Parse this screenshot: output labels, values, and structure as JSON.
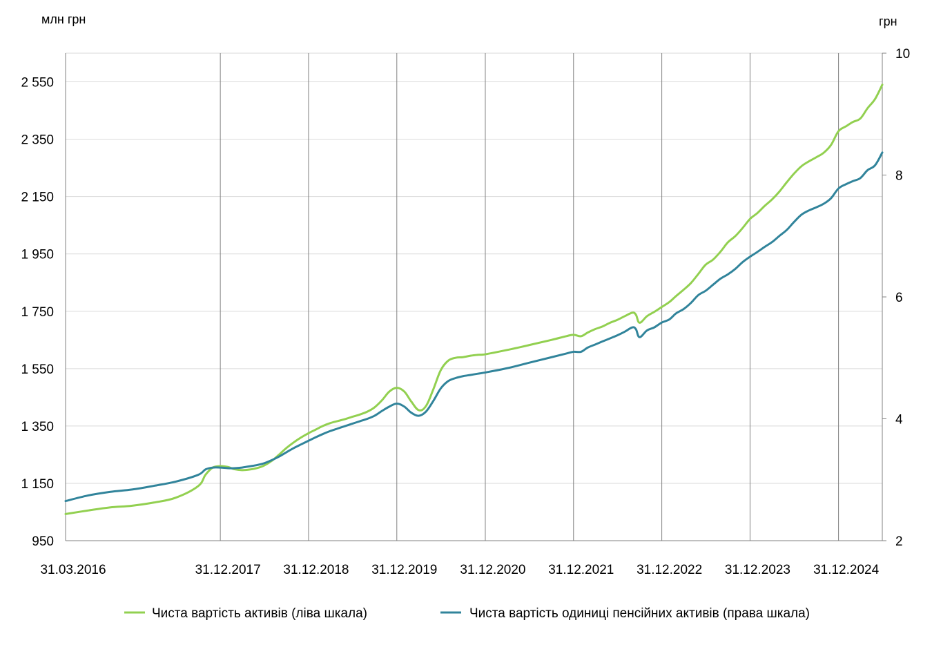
{
  "chart_data": {
    "type": "line",
    "left_axis": {
      "unit_label": "млн  грн",
      "range": [
        950,
        2650
      ],
      "ticks": [
        950,
        1150,
        1350,
        1550,
        1750,
        1950,
        2150,
        2350,
        2550
      ],
      "tick_labels": [
        "950",
        "1 150",
        "1 350",
        "1 550",
        "1 750",
        "1 950",
        "2 150",
        "2 350",
        "2 550"
      ]
    },
    "right_axis": {
      "unit_label": "грн",
      "range": [
        2,
        10
      ],
      "ticks": [
        2,
        4,
        6,
        8,
        10
      ],
      "tick_labels": [
        "2",
        "4",
        "6",
        "8",
        "10"
      ]
    },
    "x_axis": {
      "start": "2016-03-31",
      "end": "2025-06-30",
      "ticks": [
        "2016-03-31",
        "2017-12-31",
        "2018-12-31",
        "2019-12-31",
        "2020-12-31",
        "2021-12-31",
        "2022-12-31",
        "2023-12-31",
        "2024-12-31"
      ],
      "tick_labels": [
        "31.03.2016",
        "31.12.2017",
        "31.12.2018",
        "31.12.2019",
        "31.12.2020",
        "31.12.2021",
        "31.12.2022",
        "31.12.2023",
        "31.12.2024"
      ]
    },
    "grid": {
      "horizontal": true,
      "vertical": true
    },
    "legend": "bottom",
    "series": [
      {
        "name": "Чиста вартість активів (ліва шкала)",
        "axis": "left",
        "color": "#92d050",
        "points": [
          [
            "2016-03-31",
            1043
          ],
          [
            "2016-06-30",
            1055
          ],
          [
            "2016-09-30",
            1066
          ],
          [
            "2016-12-31",
            1072
          ],
          [
            "2017-03-31",
            1083
          ],
          [
            "2017-06-30",
            1100
          ],
          [
            "2017-09-30",
            1140
          ],
          [
            "2017-10-31",
            1180
          ],
          [
            "2017-11-30",
            1205
          ],
          [
            "2017-12-31",
            1210
          ],
          [
            "2018-01-31",
            1207
          ],
          [
            "2018-02-28",
            1199
          ],
          [
            "2018-03-31",
            1196
          ],
          [
            "2018-04-30",
            1198
          ],
          [
            "2018-05-31",
            1203
          ],
          [
            "2018-06-30",
            1212
          ],
          [
            "2018-07-31",
            1228
          ],
          [
            "2018-08-31",
            1250
          ],
          [
            "2018-09-30",
            1273
          ],
          [
            "2018-10-31",
            1293
          ],
          [
            "2018-11-30",
            1310
          ],
          [
            "2018-12-31",
            1325
          ],
          [
            "2019-01-31",
            1338
          ],
          [
            "2019-02-28",
            1350
          ],
          [
            "2019-03-31",
            1360
          ],
          [
            "2019-04-30",
            1367
          ],
          [
            "2019-05-31",
            1374
          ],
          [
            "2019-06-30",
            1382
          ],
          [
            "2019-07-31",
            1390
          ],
          [
            "2019-08-31",
            1400
          ],
          [
            "2019-09-30",
            1415
          ],
          [
            "2019-10-31",
            1440
          ],
          [
            "2019-11-30",
            1470
          ],
          [
            "2019-12-31",
            1483
          ],
          [
            "2020-01-31",
            1470
          ],
          [
            "2020-02-29",
            1435
          ],
          [
            "2020-03-31",
            1405
          ],
          [
            "2020-04-30",
            1420
          ],
          [
            "2020-05-31",
            1480
          ],
          [
            "2020-06-30",
            1545
          ],
          [
            "2020-07-31",
            1578
          ],
          [
            "2020-08-31",
            1588
          ],
          [
            "2020-09-30",
            1590
          ],
          [
            "2020-10-31",
            1595
          ],
          [
            "2020-11-30",
            1598
          ],
          [
            "2020-12-31",
            1600
          ],
          [
            "2021-03-31",
            1615
          ],
          [
            "2021-06-30",
            1632
          ],
          [
            "2021-09-30",
            1650
          ],
          [
            "2021-11-30",
            1663
          ],
          [
            "2021-12-31",
            1668
          ],
          [
            "2022-01-31",
            1663
          ],
          [
            "2022-02-28",
            1676
          ],
          [
            "2022-03-31",
            1688
          ],
          [
            "2022-04-30",
            1697
          ],
          [
            "2022-05-31",
            1710
          ],
          [
            "2022-06-30",
            1720
          ],
          [
            "2022-07-31",
            1733
          ],
          [
            "2022-08-31",
            1745
          ],
          [
            "2022-09-15",
            1738
          ],
          [
            "2022-09-30",
            1710
          ],
          [
            "2022-10-31",
            1733
          ],
          [
            "2022-11-30",
            1748
          ],
          [
            "2022-12-31",
            1765
          ],
          [
            "2023-01-31",
            1782
          ],
          [
            "2023-02-28",
            1803
          ],
          [
            "2023-03-31",
            1825
          ],
          [
            "2023-04-30",
            1848
          ],
          [
            "2023-05-31",
            1880
          ],
          [
            "2023-06-30",
            1912
          ],
          [
            "2023-07-31",
            1930
          ],
          [
            "2023-08-31",
            1958
          ],
          [
            "2023-09-30",
            1990
          ],
          [
            "2023-10-31",
            2012
          ],
          [
            "2023-11-30",
            2040
          ],
          [
            "2023-12-31",
            2072
          ],
          [
            "2024-01-31",
            2093
          ],
          [
            "2024-02-29",
            2117
          ],
          [
            "2024-03-31",
            2140
          ],
          [
            "2024-04-30",
            2167
          ],
          [
            "2024-05-31",
            2200
          ],
          [
            "2024-06-30",
            2230
          ],
          [
            "2024-07-31",
            2256
          ],
          [
            "2024-08-31",
            2273
          ],
          [
            "2024-09-30",
            2287
          ],
          [
            "2024-10-31",
            2303
          ],
          [
            "2024-11-30",
            2330
          ],
          [
            "2024-12-31",
            2378
          ],
          [
            "2025-01-31",
            2395
          ],
          [
            "2025-02-28",
            2410
          ],
          [
            "2025-03-31",
            2422
          ],
          [
            "2025-04-30",
            2458
          ],
          [
            "2025-05-31",
            2490
          ],
          [
            "2025-06-30",
            2540
          ]
        ]
      },
      {
        "name": "Чиста вартість одиниці  пенсійних  активів (права шкала)",
        "axis": "right",
        "color": "#31849b",
        "points": [
          [
            "2016-03-31",
            2.65
          ],
          [
            "2016-06-30",
            2.74
          ],
          [
            "2016-09-30",
            2.8
          ],
          [
            "2016-12-31",
            2.84
          ],
          [
            "2017-03-31",
            2.9
          ],
          [
            "2017-06-30",
            2.97
          ],
          [
            "2017-09-30",
            3.08
          ],
          [
            "2017-10-31",
            3.17
          ],
          [
            "2017-11-30",
            3.2
          ],
          [
            "2017-12-31",
            3.2
          ],
          [
            "2018-01-31",
            3.19
          ],
          [
            "2018-02-28",
            3.19
          ],
          [
            "2018-03-31",
            3.2
          ],
          [
            "2018-04-30",
            3.22
          ],
          [
            "2018-05-31",
            3.24
          ],
          [
            "2018-06-30",
            3.27
          ],
          [
            "2018-07-31",
            3.32
          ],
          [
            "2018-08-31",
            3.38
          ],
          [
            "2018-09-30",
            3.45
          ],
          [
            "2018-10-31",
            3.52
          ],
          [
            "2018-11-30",
            3.58
          ],
          [
            "2018-12-31",
            3.64
          ],
          [
            "2019-01-31",
            3.7
          ],
          [
            "2019-02-28",
            3.75
          ],
          [
            "2019-03-31",
            3.8
          ],
          [
            "2019-04-30",
            3.84
          ],
          [
            "2019-05-31",
            3.88
          ],
          [
            "2019-06-30",
            3.92
          ],
          [
            "2019-07-31",
            3.96
          ],
          [
            "2019-08-31",
            4.0
          ],
          [
            "2019-09-30",
            4.05
          ],
          [
            "2019-10-31",
            4.13
          ],
          [
            "2019-11-30",
            4.2
          ],
          [
            "2019-12-31",
            4.25
          ],
          [
            "2020-01-31",
            4.2
          ],
          [
            "2020-02-29",
            4.1
          ],
          [
            "2020-03-31",
            4.05
          ],
          [
            "2020-04-30",
            4.12
          ],
          [
            "2020-05-31",
            4.3
          ],
          [
            "2020-06-30",
            4.5
          ],
          [
            "2020-07-31",
            4.62
          ],
          [
            "2020-08-31",
            4.67
          ],
          [
            "2020-09-30",
            4.7
          ],
          [
            "2020-10-31",
            4.72
          ],
          [
            "2020-11-30",
            4.74
          ],
          [
            "2020-12-31",
            4.76
          ],
          [
            "2021-03-31",
            4.83
          ],
          [
            "2021-06-30",
            4.92
          ],
          [
            "2021-09-30",
            5.01
          ],
          [
            "2021-11-30",
            5.07
          ],
          [
            "2021-12-31",
            5.1
          ],
          [
            "2022-01-31",
            5.1
          ],
          [
            "2022-02-28",
            5.17
          ],
          [
            "2022-03-31",
            5.22
          ],
          [
            "2022-04-30",
            5.27
          ],
          [
            "2022-05-31",
            5.32
          ],
          [
            "2022-06-30",
            5.37
          ],
          [
            "2022-07-31",
            5.43
          ],
          [
            "2022-08-31",
            5.5
          ],
          [
            "2022-09-15",
            5.47
          ],
          [
            "2022-09-30",
            5.34
          ],
          [
            "2022-10-31",
            5.45
          ],
          [
            "2022-11-30",
            5.5
          ],
          [
            "2022-12-31",
            5.58
          ],
          [
            "2023-01-31",
            5.63
          ],
          [
            "2023-02-28",
            5.73
          ],
          [
            "2023-03-31",
            5.8
          ],
          [
            "2023-04-30",
            5.9
          ],
          [
            "2023-05-31",
            6.03
          ],
          [
            "2023-06-30",
            6.1
          ],
          [
            "2023-07-31",
            6.2
          ],
          [
            "2023-08-31",
            6.3
          ],
          [
            "2023-09-30",
            6.37
          ],
          [
            "2023-10-31",
            6.46
          ],
          [
            "2023-11-30",
            6.57
          ],
          [
            "2023-12-31",
            6.66
          ],
          [
            "2024-01-31",
            6.74
          ],
          [
            "2024-02-29",
            6.82
          ],
          [
            "2024-03-31",
            6.9
          ],
          [
            "2024-04-30",
            7.0
          ],
          [
            "2024-05-31",
            7.1
          ],
          [
            "2024-06-30",
            7.23
          ],
          [
            "2024-07-31",
            7.35
          ],
          [
            "2024-08-31",
            7.42
          ],
          [
            "2024-09-30",
            7.47
          ],
          [
            "2024-10-31",
            7.53
          ],
          [
            "2024-11-30",
            7.62
          ],
          [
            "2024-12-31",
            7.78
          ],
          [
            "2025-01-31",
            7.85
          ],
          [
            "2025-02-28",
            7.9
          ],
          [
            "2025-03-31",
            7.95
          ],
          [
            "2025-04-30",
            8.08
          ],
          [
            "2025-05-31",
            8.16
          ],
          [
            "2025-06-30",
            8.37
          ]
        ]
      }
    ]
  }
}
